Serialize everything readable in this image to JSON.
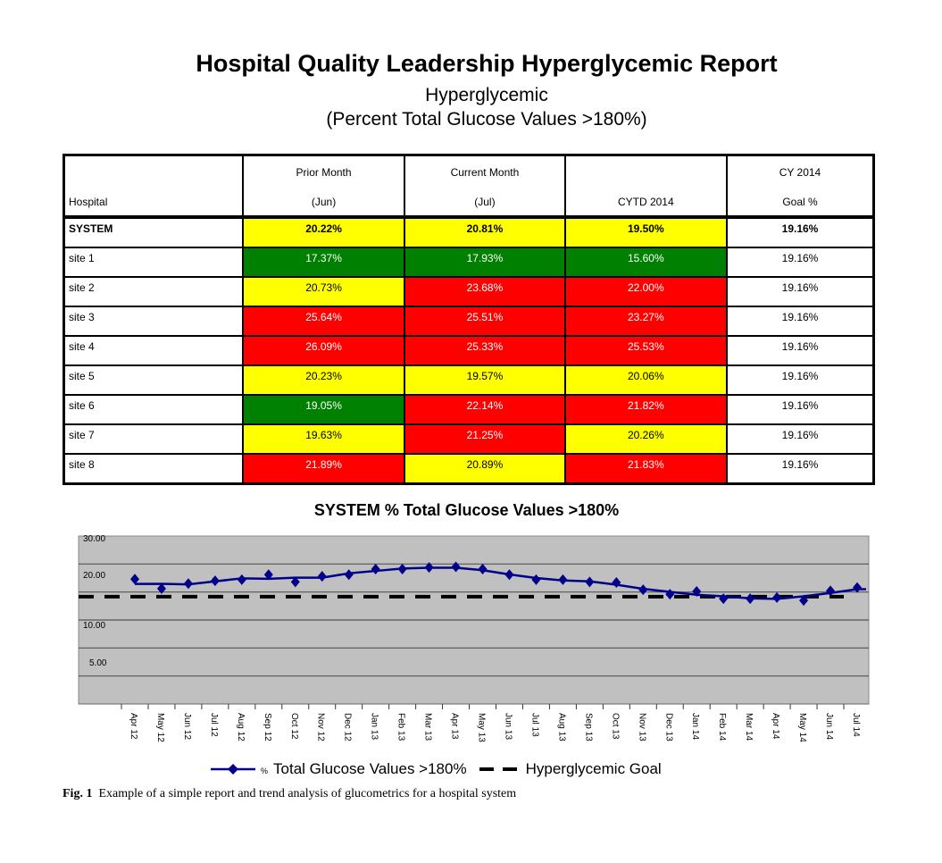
{
  "report": {
    "title": "Hospital Quality Leadership Hyperglycemic Report",
    "subtitle1": "Hyperglycemic",
    "subtitle2": "(Percent Total Glucose Values >180%)"
  },
  "table": {
    "headers": [
      {
        "line1": "",
        "line2": "Hospital"
      },
      {
        "line1": "Prior Month",
        "line2": "(Jun)"
      },
      {
        "line1": "Current Month",
        "line2": "(Jul)"
      },
      {
        "line1": "",
        "line2": "CYTD 2014"
      },
      {
        "line1": "CY 2014",
        "line2": "Goal %"
      }
    ],
    "rows": [
      {
        "name": "SYSTEM",
        "prior": "20.22%",
        "current": "20.81%",
        "cytd": "19.50%",
        "goal": "19.16%",
        "colors": [
          "yellow",
          "yellow",
          "yellow"
        ]
      },
      {
        "name": "site 1",
        "prior": "17.37%",
        "current": "17.93%",
        "cytd": "15.60%",
        "goal": "19.16%",
        "colors": [
          "green",
          "green",
          "green"
        ]
      },
      {
        "name": "site 2",
        "prior": "20.73%",
        "current": "23.68%",
        "cytd": "22.00%",
        "goal": "19.16%",
        "colors": [
          "yellow",
          "red",
          "red"
        ]
      },
      {
        "name": "site 3",
        "prior": "25.64%",
        "current": "25.51%",
        "cytd": "23.27%",
        "goal": "19.16%",
        "colors": [
          "red",
          "red",
          "red"
        ]
      },
      {
        "name": "site 4",
        "prior": "26.09%",
        "current": "25.33%",
        "cytd": "25.53%",
        "goal": "19.16%",
        "colors": [
          "red",
          "red",
          "red"
        ]
      },
      {
        "name": "site 5",
        "prior": "20.23%",
        "current": "19.57%",
        "cytd": "20.06%",
        "goal": "19.16%",
        "colors": [
          "yellow",
          "yellow",
          "yellow"
        ]
      },
      {
        "name": "site 6",
        "prior": "19.05%",
        "current": "22.14%",
        "cytd": "21.82%",
        "goal": "19.16%",
        "colors": [
          "green",
          "red",
          "red"
        ]
      },
      {
        "name": "site 7",
        "prior": "19.63%",
        "current": "21.25%",
        "cytd": "20.26%",
        "goal": "19.16%",
        "colors": [
          "yellow",
          "red",
          "yellow"
        ]
      },
      {
        "name": "site 8",
        "prior": "21.89%",
        "current": "20.89%",
        "cytd": "21.83%",
        "goal": "19.16%",
        "colors": [
          "red",
          "yellow",
          "red"
        ]
      }
    ],
    "status_colors": {
      "yellow": "#ffff00",
      "green": "#008000",
      "red": "#ff0000"
    }
  },
  "chart_data": {
    "type": "line",
    "title": "SYSTEM % Total Glucose Values >180%",
    "categories": [
      "Apr 12",
      "May 12",
      "Jun 12",
      "Jul 12",
      "Aug 12",
      "Sep 12",
      "Oct 12",
      "Nov 12",
      "Dec 12",
      "Jan 13",
      "Feb 13",
      "Mar 13",
      "Apr 13",
      "May 13",
      "Jun 13",
      "Jul 13",
      "Aug 13",
      "Sep 13",
      "Oct 13",
      "Nov 13",
      "Dec 13",
      "Jan 14",
      "Feb 14",
      "Mar 14",
      "Apr 14",
      "May 14",
      "Jun 14",
      "Jul 14"
    ],
    "series": [
      {
        "name": "% Total Glucose Values >180%",
        "color": "#00008b",
        "marker": "diamond",
        "values": [
          22.3,
          20.6,
          21.5,
          22.0,
          22.2,
          23.1,
          21.8,
          22.8,
          23.1,
          24.1,
          24.1,
          24.4,
          24.5,
          24.1,
          23.1,
          22.2,
          22.2,
          21.8,
          21.7,
          20.4,
          19.6,
          20.1,
          18.8,
          18.8,
          19.0,
          18.5,
          20.2,
          20.8
        ]
      },
      {
        "name": "Hyperglycemic Goal",
        "color": "#000000",
        "style": "dashed",
        "value": 19.16
      }
    ],
    "ytick_labels": [
      "30.00",
      "20.00",
      "10.00",
      "5.00"
    ],
    "ylim": [
      0,
      30
    ],
    "grid": true,
    "plot_background": "#c0c0c0",
    "legend_position": "bottom",
    "trendline": "smoothed"
  },
  "legend": {
    "prefix": "%",
    "series_label": "Total Glucose Values >180%",
    "goal_label": "Hyperglycemic Goal"
  },
  "caption": {
    "label": "Fig. 1",
    "text": "Example of a simple report and trend analysis of glucometrics for a hospital system"
  }
}
